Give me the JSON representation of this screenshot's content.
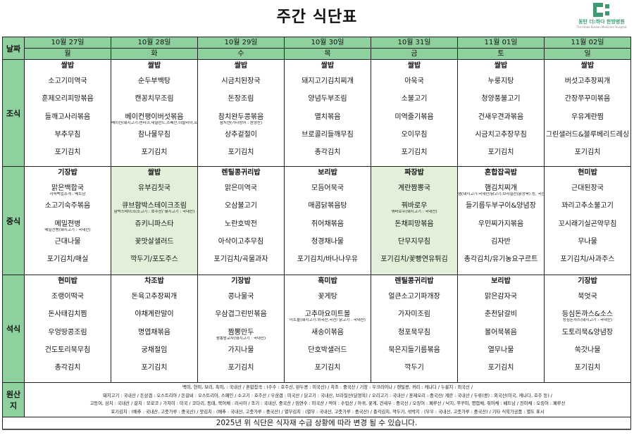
{
  "title": "주간 식단표",
  "logo": {
    "name": "동탄 더:하다 한방병원",
    "subtitle": "The Hada Korean Medicine Hospital",
    "color": "#3f9a72"
  },
  "labels": {
    "date": "날짜",
    "breakfast": "조식",
    "lunch": "중식",
    "dinner": "석식",
    "origin": "원산지"
  },
  "colors": {
    "header_green": "#8fd19e",
    "highlight": "#e2efd9"
  },
  "days": [
    {
      "date": "10월 27일",
      "weekday": "월",
      "lunch_highlight": false,
      "breakfast": [
        {
          "name": "쌀밥"
        },
        {
          "name": "소고기미역국"
        },
        {
          "name": "훈제오리피망볶음"
        },
        {
          "name": "들깨고사리볶음"
        },
        {
          "name": "부추무침"
        },
        {
          "name": "포기김치"
        }
      ],
      "lunch": [
        {
          "name": "기장밥"
        },
        {
          "name": "맑은백합국",
          "note": "자숙백합조개 : 베트남"
        },
        {
          "name": "소고기숙주볶음"
        },
        {
          "name": "메밀전병",
          "note": "메밀전병(돼지고기 : 국내산)"
        },
        {
          "name": "근대나물"
        },
        {
          "name": "포기김치/매실"
        }
      ],
      "dinner": [
        {
          "name": "현미밥"
        },
        {
          "name": "조랭이떡국"
        },
        {
          "name": "돈사태김치찜"
        },
        {
          "name": "우엉땅콩조림"
        },
        {
          "name": "건도토리묵무침"
        },
        {
          "name": "총각김치"
        }
      ]
    },
    {
      "date": "10월 28일",
      "weekday": "화",
      "lunch_highlight": true,
      "breakfast": [
        {
          "name": "쌀밥"
        },
        {
          "name": "순두부백탕"
        },
        {
          "name": "캔꽁치무조림"
        },
        {
          "name": "베이컨팽이버섯볶음",
          "note": "베이컨(돼지고기:덴마크,네덜란드,스페인,이탈리아,프랑스 등)"
        },
        {
          "name": "참나물무침"
        },
        {
          "name": "포기김치"
        }
      ],
      "lunch": [
        {
          "name": "쌀밥"
        },
        {
          "name": "유부김칫국"
        },
        {
          "name": "큐브함박스테이크조림",
          "note": "함박스테이크(소고기 : 호주산/ 돼지고기 : 국내산)"
        },
        {
          "name": "쥬키니파스타"
        },
        {
          "name": "꽃맛살샐러드"
        },
        {
          "name": "깍두기/포도주스"
        }
      ],
      "dinner": [
        {
          "name": "차조밥"
        },
        {
          "name": "돈육고추장찌개"
        },
        {
          "name": "야채계란말이"
        },
        {
          "name": "명엽채볶음"
        },
        {
          "name": "궁채절임"
        },
        {
          "name": "포기김치"
        }
      ]
    },
    {
      "date": "10월 29일",
      "weekday": "수",
      "lunch_highlight": false,
      "breakfast": [
        {
          "name": "쌀밥"
        },
        {
          "name": "시금치된장국"
        },
        {
          "name": "돈장조림"
        },
        {
          "name": "참치완두콩볶음",
          "note": "참치캔(가다랑어 : 원양산)"
        },
        {
          "name": "상추겉절이"
        },
        {
          "name": "포기김치"
        }
      ],
      "lunch": [
        {
          "name": "렌틸콩귀리밥"
        },
        {
          "name": "맑은미역국"
        },
        {
          "name": "오삼불고기"
        },
        {
          "name": "노란호박전"
        },
        {
          "name": "아삭이고추무침"
        },
        {
          "name": "포기김치/곡물과자"
        }
      ],
      "dinner": [
        {
          "name": "기장밥"
        },
        {
          "name": "콩나물국"
        },
        {
          "name": "우삼겹그린빈볶음"
        },
        {
          "name": "짬뽕만두",
          "note": "짬뽕왕교자(돼지고기 : 국내산)"
        },
        {
          "name": "가지나물"
        },
        {
          "name": "포기김치"
        }
      ]
    },
    {
      "date": "10월 30일",
      "weekday": "목",
      "lunch_highlight": false,
      "breakfast": [
        {
          "name": "쌀밥"
        },
        {
          "name": "돼지고기김치찌개"
        },
        {
          "name": "양념두부조림"
        },
        {
          "name": "멸치볶음"
        },
        {
          "name": "브로콜리들깨무침"
        },
        {
          "name": "총각김치"
        }
      ],
      "lunch": [
        {
          "name": "보리밥"
        },
        {
          "name": "모듬어묵국"
        },
        {
          "name": "매콤닭볶음탕"
        },
        {
          "name": "쥐어채볶음"
        },
        {
          "name": "청경채나물"
        },
        {
          "name": "포기김치/바나나우유"
        }
      ],
      "dinner": [
        {
          "name": "흑미밥"
        },
        {
          "name": "꽃게탕"
        },
        {
          "name": "고추마요미트볼",
          "note": "미트볼(돼지고기:외국산,국산/ 닭고기 : 국내산)"
        },
        {
          "name": "새송이볶음"
        },
        {
          "name": "단호박샐러드"
        },
        {
          "name": "포기김치"
        }
      ]
    },
    {
      "date": "10월 31일",
      "weekday": "금",
      "lunch_highlight": true,
      "breakfast": [
        {
          "name": "쌀밥"
        },
        {
          "name": "아욱국"
        },
        {
          "name": "소불고기"
        },
        {
          "name": "미역줄기볶음"
        },
        {
          "name": "오이무침"
        },
        {
          "name": "포기김치"
        }
      ],
      "lunch": [
        {
          "name": "짜장밥"
        },
        {
          "name": "계란짬뽕국"
        },
        {
          "name": "꿔바로우",
          "note": "꿔바로우(돼지고기 : 국내산)"
        },
        {
          "name": "돈채피망볶음"
        },
        {
          "name": "단무지무침"
        },
        {
          "name": "포기김치/꽃빵연유튀김"
        }
      ],
      "dinner": [
        {
          "name": "렌틸콩귀리밥"
        },
        {
          "name": "얼큰소고기파개장"
        },
        {
          "name": "가자미조림"
        },
        {
          "name": "청포묵무침"
        },
        {
          "name": "묵은지들기름볶음"
        },
        {
          "name": "깍두기"
        }
      ]
    },
    {
      "date": "11월 01일",
      "weekday": "토",
      "lunch_highlight": false,
      "breakfast": [
        {
          "name": "쌀밥"
        },
        {
          "name": "누룽지탕"
        },
        {
          "name": "청양풍불고기"
        },
        {
          "name": "건새우견과볶음"
        },
        {
          "name": "시금치고추장무침"
        },
        {
          "name": "포기김치"
        }
      ],
      "lunch": [
        {
          "name": "혼합잡곡밥"
        },
        {
          "name": "햄김치찌개",
          "note": "햄(돼지고기:국내산/닭고기:브라질산(닭정육) 등, 국산)"
        },
        {
          "name": "들기름두부구이&양념장"
        },
        {
          "name": "우민찌가지볶음"
        },
        {
          "name": "김자반"
        },
        {
          "name": "총각김치/유기농요구르트"
        }
      ],
      "dinner": [
        {
          "name": "보리밥"
        },
        {
          "name": "맑은감자국"
        },
        {
          "name": "춘천닭갈비"
        },
        {
          "name": "볼어묵볶음"
        },
        {
          "name": "열무나물"
        },
        {
          "name": "포기김치"
        }
      ]
    },
    {
      "date": "11월 02일",
      "weekday": "일",
      "lunch_highlight": false,
      "breakfast": [
        {
          "name": "쌀밥"
        },
        {
          "name": "버섯고추장찌개"
        },
        {
          "name": "간장쭈꾸미볶음"
        },
        {
          "name": "우유계란찜"
        },
        {
          "name": "그린샐러드&블루베리드레싱"
        },
        {
          "name": "포기김치"
        }
      ],
      "lunch": [
        {
          "name": "현미밥"
        },
        {
          "name": "근대된장국"
        },
        {
          "name": "꽈리고추소불고기"
        },
        {
          "name": "꼬시래기실곤약무침"
        },
        {
          "name": "무나물"
        },
        {
          "name": "포기김치/사과주스"
        }
      ],
      "dinner": [
        {
          "name": "기장밥"
        },
        {
          "name": "북엇국"
        },
        {
          "name": "등심돈까스&소스",
          "note": "등심돈까스(돼지고기 : 국내산)"
        },
        {
          "name": "도토리묵&양념장"
        },
        {
          "name": "쑥갓나물"
        },
        {
          "name": "포기김치"
        }
      ]
    }
  ],
  "origin_lines": [
    "백미, 현미, 보리, 흑미, : 국내산 / 혼합잡곡 : (수수 : 호주산, 완두콩 : 미국산) / 차조 : 중국산 / 기장 : 우크라이나 / 렌틸콩, 귀리 : 캐나다 / 누룽지 : 외국산 /",
    "돼지고기 : 국내산 / 돈삼겹 : 오스트리아 / 돈갈비 : 오스트리아, 스페인 / 소고기 : 호주산 / 우삼겹 : 미국산 / 닭고기 : 국내산, 브라질산(닭정육) / 오리고기 : 국내산 / 훈제오리 : 중국산/ 계란 : 국내산 / 두류(콩) : 외국산(미국, 캐나다, 호주 등) /",
    "고등어, 삼치 : 국내산 / 갈치 : 모로코 / 가자미 : 미국 / 코다리, 동태, 북어채 : 러시아 / 조기 : 국내산, 중국산 / 임연수 : 미국산 / 적어 : 수입산 / 아귀, 꽃게, 건새우 : 중국산 / 오징어 : 페루산 / 낙지, 쭈꾸미, 명엽채, 쥐어채 : 베트남 / 진미채 : 오징어 : 페루산",
    "포기김치 : (배추 : 국내산, 고춧가루 : 중국산) / 맛김치 : (배추 : 국내산, 고춧가루 : 중국산) / 열무김치 : (열무 : 국내산, 고춧가루 : 중국산) / 총각김치, 깍두기, 섞박지 : (무우 : 국내산, 고춧가루 : 중국산) / 기타 식육가공품 : 별도 표시"
  ],
  "notice": "2025년 위 식단은 식자재 수급 상황에 따라 변경 될 수 있습니다."
}
